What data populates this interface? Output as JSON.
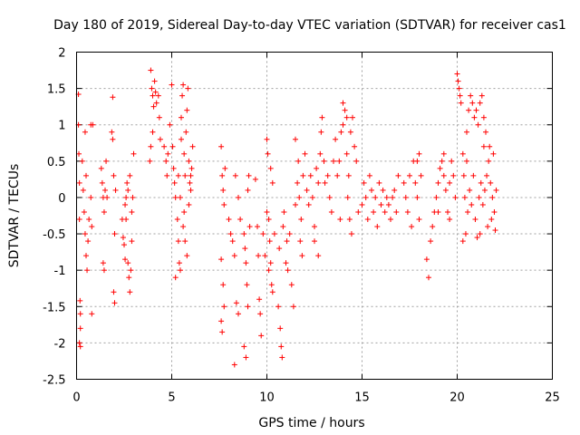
{
  "chart_data": {
    "type": "scatter",
    "title": "Day 180 of 2019, Sidereal Day-to-day VTEC variation (SDTVAR) for receiver cas1",
    "xlabel": "GPS time / hours",
    "ylabel": "SDTVAR / TECUs",
    "xlim": [
      0,
      25
    ],
    "ylim": [
      -2.5,
      2
    ],
    "xticks": [
      0,
      5,
      10,
      15,
      20,
      25
    ],
    "yticks": [
      -2.5,
      -2,
      -1.5,
      -1,
      -0.5,
      0,
      0.5,
      1,
      1.5,
      2
    ],
    "xtick_labels": [
      "0",
      "5",
      "10",
      "15",
      "20",
      "25"
    ],
    "ytick_labels": [
      "-2.5",
      "-2",
      "-1.5",
      "-1",
      "-0.5",
      "0",
      "0.5",
      "1",
      "1.5",
      "2"
    ],
    "grid": true,
    "marker": "+",
    "color": "#ff0000",
    "series": [
      {
        "name": "cas1",
        "points": [
          [
            0.1,
            1.42
          ],
          [
            0.1,
            1.0
          ],
          [
            0.12,
            0.6
          ],
          [
            0.15,
            0.2
          ],
          [
            0.15,
            -0.3
          ],
          [
            0.18,
            -1.42
          ],
          [
            0.2,
            -1.6
          ],
          [
            0.2,
            -1.8
          ],
          [
            0.15,
            -2.0
          ],
          [
            0.2,
            -2.05
          ],
          [
            0.3,
            0.5
          ],
          [
            0.35,
            0.1
          ],
          [
            0.4,
            -0.2
          ],
          [
            0.45,
            -0.5
          ],
          [
            0.5,
            -0.8
          ],
          [
            0.55,
            -1.0
          ],
          [
            0.5,
            0.3
          ],
          [
            0.45,
            0.9
          ],
          [
            0.6,
            -0.6
          ],
          [
            0.65,
            -0.3
          ],
          [
            0.75,
            1.0
          ],
          [
            0.75,
            0.0
          ],
          [
            0.8,
            -0.4
          ],
          [
            0.85,
            1.0
          ],
          [
            0.8,
            -1.6
          ],
          [
            1.3,
            0.4
          ],
          [
            1.35,
            0.2
          ],
          [
            1.4,
            0.0
          ],
          [
            1.45,
            -0.2
          ],
          [
            1.5,
            0.1
          ],
          [
            1.55,
            0.5
          ],
          [
            1.4,
            -0.9
          ],
          [
            1.45,
            -1.0
          ],
          [
            1.6,
            0.0
          ],
          [
            1.9,
            1.38
          ],
          [
            1.85,
            0.9
          ],
          [
            1.9,
            0.8
          ],
          [
            1.95,
            0.3
          ],
          [
            2.0,
            -0.5
          ],
          [
            1.95,
            -1.3
          ],
          [
            2.0,
            -1.45
          ],
          [
            2.05,
            0.1
          ],
          [
            2.4,
            -0.3
          ],
          [
            2.45,
            -0.55
          ],
          [
            2.5,
            -0.65
          ],
          [
            2.55,
            -0.85
          ],
          [
            2.6,
            -0.3
          ],
          [
            2.6,
            0.0
          ],
          [
            2.65,
            0.2
          ],
          [
            2.7,
            -0.9
          ],
          [
            2.75,
            -1.1
          ],
          [
            2.8,
            -1.3
          ],
          [
            2.85,
            -1.0
          ],
          [
            2.9,
            -0.6
          ],
          [
            2.95,
            0.0
          ],
          [
            3.0,
            0.6
          ],
          [
            2.8,
            0.3
          ],
          [
            2.55,
            -0.1
          ],
          [
            2.7,
            0.1
          ],
          [
            2.9,
            -0.2
          ],
          [
            3.9,
            1.75
          ],
          [
            3.95,
            1.5
          ],
          [
            4.0,
            1.4
          ],
          [
            4.05,
            1.25
          ],
          [
            4.1,
            1.6
          ],
          [
            4.15,
            1.45
          ],
          [
            4.2,
            1.3
          ],
          [
            3.9,
            0.7
          ],
          [
            3.85,
            0.5
          ],
          [
            4.0,
            0.9
          ],
          [
            4.3,
            1.4
          ],
          [
            4.35,
            1.1
          ],
          [
            4.4,
            0.8
          ],
          [
            4.6,
            0.7
          ],
          [
            4.7,
            0.5
          ],
          [
            4.75,
            0.3
          ],
          [
            4.8,
            0.6
          ],
          [
            4.9,
            1.0
          ],
          [
            5.0,
            1.55
          ],
          [
            5.05,
            0.7
          ],
          [
            5.1,
            0.4
          ],
          [
            5.15,
            0.2
          ],
          [
            5.2,
            0.0
          ],
          [
            5.2,
            -1.1
          ],
          [
            5.3,
            -0.3
          ],
          [
            5.35,
            -0.6
          ],
          [
            5.4,
            -0.9
          ],
          [
            5.45,
            -1.0
          ],
          [
            5.5,
            0.8
          ],
          [
            5.5,
            1.1
          ],
          [
            5.55,
            1.4
          ],
          [
            5.6,
            1.55
          ],
          [
            5.65,
            0.6
          ],
          [
            5.7,
            0.3
          ],
          [
            5.75,
            0.9
          ],
          [
            5.8,
            1.2
          ],
          [
            5.85,
            1.5
          ],
          [
            5.9,
            0.5
          ],
          [
            5.95,
            0.2
          ],
          [
            6.0,
            0.1
          ],
          [
            5.6,
            -0.4
          ],
          [
            5.7,
            -0.6
          ],
          [
            5.8,
            -0.8
          ],
          [
            6.05,
            0.4
          ],
          [
            6.1,
            0.7
          ],
          [
            5.45,
            0.0
          ],
          [
            5.35,
            0.3
          ],
          [
            5.65,
            -0.2
          ],
          [
            5.9,
            -0.1
          ],
          [
            6.0,
            0.3
          ],
          [
            7.6,
            0.7
          ],
          [
            7.65,
            0.3
          ],
          [
            7.7,
            0.1
          ],
          [
            7.75,
            -0.1
          ],
          [
            7.6,
            -0.85
          ],
          [
            7.7,
            -1.2
          ],
          [
            7.75,
            -1.5
          ],
          [
            7.6,
            -1.7
          ],
          [
            7.65,
            -1.85
          ],
          [
            7.8,
            0.4
          ],
          [
            8.0,
            -0.3
          ],
          [
            8.1,
            -0.5
          ],
          [
            8.2,
            -0.6
          ],
          [
            8.3,
            -0.8
          ],
          [
            8.4,
            -1.45
          ],
          [
            8.5,
            -1.6
          ],
          [
            8.3,
            -2.3
          ],
          [
            8.35,
            0.3
          ],
          [
            8.5,
            0.0
          ],
          [
            8.6,
            -0.3
          ],
          [
            8.8,
            -0.5
          ],
          [
            8.85,
            -0.7
          ],
          [
            8.9,
            -0.9
          ],
          [
            8.95,
            -1.2
          ],
          [
            9.0,
            -1.5
          ],
          [
            8.8,
            -2.05
          ],
          [
            8.9,
            -2.2
          ],
          [
            9.0,
            0.1
          ],
          [
            9.05,
            0.3
          ],
          [
            9.1,
            -0.4
          ],
          [
            9.4,
            0.25
          ],
          [
            9.5,
            -0.4
          ],
          [
            9.55,
            -0.8
          ],
          [
            9.6,
            -1.4
          ],
          [
            9.65,
            -1.6
          ],
          [
            9.7,
            -1.9
          ],
          [
            9.8,
            -0.5
          ],
          [
            9.9,
            -0.8
          ],
          [
            10.0,
            0.8
          ],
          [
            10.05,
            0.6
          ],
          [
            10.1,
            -0.3
          ],
          [
            10.15,
            -0.6
          ],
          [
            10.2,
            -0.9
          ],
          [
            10.25,
            -1.2
          ],
          [
            10.3,
            -1.3
          ],
          [
            10.1,
            -1.0
          ],
          [
            10.2,
            0.4
          ],
          [
            10.3,
            0.2
          ],
          [
            10.0,
            -0.2
          ],
          [
            10.4,
            -0.5
          ],
          [
            10.6,
            -1.5
          ],
          [
            10.7,
            -1.8
          ],
          [
            10.75,
            -2.05
          ],
          [
            10.8,
            -2.2
          ],
          [
            10.65,
            -0.7
          ],
          [
            10.85,
            -0.4
          ],
          [
            10.9,
            -0.2
          ],
          [
            11.0,
            -0.9
          ],
          [
            11.05,
            -0.6
          ],
          [
            11.1,
            -1.0
          ],
          [
            11.2,
            -0.5
          ],
          [
            11.3,
            -1.2
          ],
          [
            11.4,
            -1.5
          ],
          [
            11.5,
            -0.1
          ],
          [
            11.6,
            0.2
          ],
          [
            11.7,
            0.0
          ],
          [
            11.8,
            -0.3
          ],
          [
            11.9,
            0.3
          ],
          [
            12.0,
            0.6
          ],
          [
            11.75,
            -0.6
          ],
          [
            11.85,
            -0.8
          ],
          [
            11.65,
            0.5
          ],
          [
            11.5,
            0.8
          ],
          [
            12.1,
            0.1
          ],
          [
            12.2,
            -0.1
          ],
          [
            12.3,
            0.3
          ],
          [
            12.4,
            0.0
          ],
          [
            12.5,
            -0.4
          ],
          [
            12.6,
            0.4
          ],
          [
            12.7,
            0.2
          ],
          [
            12.8,
            0.6
          ],
          [
            12.9,
            1.1
          ],
          [
            13.0,
            0.5
          ],
          [
            12.5,
            -0.6
          ],
          [
            12.7,
            -0.8
          ],
          [
            12.85,
            0.9
          ],
          [
            13.05,
            0.2
          ],
          [
            13.2,
            0.3
          ],
          [
            13.3,
            0.0
          ],
          [
            13.4,
            -0.2
          ],
          [
            13.5,
            0.5
          ],
          [
            13.6,
            0.8
          ],
          [
            13.7,
            0.3
          ],
          [
            13.8,
            0.5
          ],
          [
            13.9,
            0.9
          ],
          [
            14.0,
            1.0
          ],
          [
            14.1,
            1.2
          ],
          [
            14.2,
            0.6
          ],
          [
            14.3,
            0.3
          ],
          [
            14.4,
            0.9
          ],
          [
            14.5,
            1.1
          ],
          [
            14.6,
            0.7
          ],
          [
            14.7,
            0.5
          ],
          [
            14.25,
            0.0
          ],
          [
            14.35,
            -0.3
          ],
          [
            14.45,
            -0.5
          ],
          [
            13.85,
            -0.3
          ],
          [
            14.0,
            1.3
          ],
          [
            14.2,
            1.1
          ],
          [
            14.8,
            -0.2
          ],
          [
            15.0,
            -0.1
          ],
          [
            15.1,
            0.2
          ],
          [
            15.2,
            0.0
          ],
          [
            15.3,
            -0.3
          ],
          [
            15.4,
            0.3
          ],
          [
            15.5,
            0.1
          ],
          [
            15.6,
            -0.2
          ],
          [
            15.7,
            0.0
          ],
          [
            15.8,
            -0.4
          ],
          [
            15.9,
            0.2
          ],
          [
            16.0,
            -0.1
          ],
          [
            16.1,
            0.1
          ],
          [
            16.2,
            -0.2
          ],
          [
            16.3,
            0.0
          ],
          [
            16.4,
            -0.1
          ],
          [
            16.5,
            -0.3
          ],
          [
            16.6,
            0.0
          ],
          [
            16.7,
            0.1
          ],
          [
            16.8,
            -0.2
          ],
          [
            16.9,
            0.3
          ],
          [
            17.2,
            0.2
          ],
          [
            17.3,
            0.0
          ],
          [
            17.4,
            -0.2
          ],
          [
            17.5,
            0.3
          ],
          [
            17.6,
            -0.4
          ],
          [
            17.7,
            0.5
          ],
          [
            17.8,
            0.2
          ],
          [
            17.9,
            0.0
          ],
          [
            18.0,
            -0.3
          ],
          [
            18.1,
            0.3
          ],
          [
            18.0,
            0.6
          ],
          [
            17.9,
            0.5
          ],
          [
            18.4,
            -0.85
          ],
          [
            18.5,
            -1.1
          ],
          [
            18.6,
            -0.6
          ],
          [
            18.7,
            -0.4
          ],
          [
            18.8,
            -0.2
          ],
          [
            18.9,
            0.0
          ],
          [
            19.0,
            0.2
          ],
          [
            19.1,
            0.4
          ],
          [
            19.2,
            0.5
          ],
          [
            19.3,
            0.3
          ],
          [
            19.4,
            0.1
          ],
          [
            19.5,
            -0.2
          ],
          [
            19.6,
            0.2
          ],
          [
            19.7,
            0.5
          ],
          [
            19.8,
            0.3
          ],
          [
            19.9,
            0.0
          ],
          [
            19.6,
            -0.3
          ],
          [
            19.3,
            0.6
          ],
          [
            19.0,
            -0.2
          ],
          [
            20.0,
            1.7
          ],
          [
            20.05,
            1.6
          ],
          [
            20.1,
            1.5
          ],
          [
            20.15,
            1.4
          ],
          [
            20.2,
            1.3
          ],
          [
            20.3,
            0.6
          ],
          [
            20.35,
            0.3
          ],
          [
            20.4,
            0.0
          ],
          [
            20.5,
            0.5
          ],
          [
            20.6,
            1.2
          ],
          [
            20.7,
            1.4
          ],
          [
            20.8,
            1.3
          ],
          [
            20.9,
            1.1
          ],
          [
            21.0,
            1.2
          ],
          [
            21.1,
            1.0
          ],
          [
            21.2,
            1.3
          ],
          [
            21.3,
            1.4
          ],
          [
            21.4,
            1.1
          ],
          [
            21.5,
            0.9
          ],
          [
            21.4,
            0.7
          ],
          [
            20.45,
            -0.5
          ],
          [
            20.55,
            -0.2
          ],
          [
            20.65,
            0.1
          ],
          [
            20.75,
            -0.1
          ],
          [
            20.85,
            0.3
          ],
          [
            20.95,
            -0.3
          ],
          [
            21.05,
            -0.55
          ],
          [
            21.15,
            0.0
          ],
          [
            21.25,
            0.2
          ],
          [
            21.35,
            -0.1
          ],
          [
            21.45,
            0.1
          ],
          [
            21.55,
            0.3
          ],
          [
            21.65,
            0.5
          ],
          [
            21.75,
            0.2
          ],
          [
            21.85,
            0.0
          ],
          [
            21.95,
            -0.2
          ],
          [
            22.0,
            -0.45
          ],
          [
            21.9,
            0.6
          ],
          [
            22.05,
            0.1
          ],
          [
            21.8,
            -0.3
          ],
          [
            21.6,
            -0.4
          ],
          [
            21.7,
            0.7
          ],
          [
            21.2,
            -0.5
          ],
          [
            20.5,
            0.9
          ],
          [
            20.3,
            -0.6
          ]
        ]
      }
    ]
  }
}
